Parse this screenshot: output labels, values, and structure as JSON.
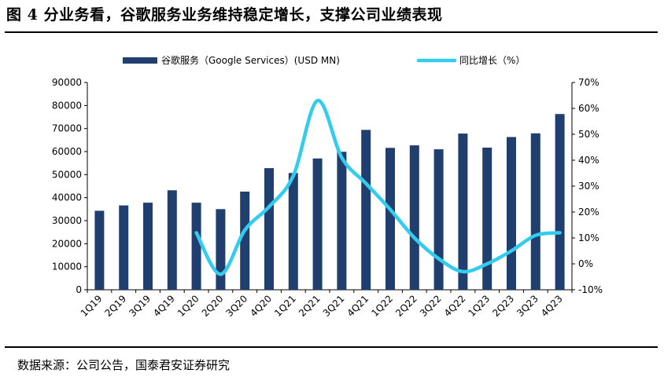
{
  "figure": {
    "title": "图 4 分业务看，谷歌服务业务维持稳定增长，支撑公司业绩表现",
    "source": "数据来源：公司公告，国泰君安证券研究"
  },
  "chart_data": {
    "type": "bar",
    "categories": [
      "1Q19",
      "2Q19",
      "3Q19",
      "4Q19",
      "1Q20",
      "2Q20",
      "3Q20",
      "4Q20",
      "1Q21",
      "2Q21",
      "3Q21",
      "4Q21",
      "1Q22",
      "2Q22",
      "3Q22",
      "4Q22",
      "1Q23",
      "2Q23",
      "3Q23",
      "4Q23"
    ],
    "series": [
      {
        "name": "谷歌服务（Google Services）(USD MN)",
        "type": "bar",
        "axis": "left",
        "color": "#203f6e",
        "values": [
          34300,
          36600,
          37800,
          43200,
          37800,
          35000,
          42600,
          52800,
          50700,
          57000,
          59900,
          69400,
          61600,
          62700,
          61000,
          67800,
          61700,
          66300,
          67900,
          76300
        ]
      },
      {
        "name": "同比增长（%）",
        "type": "line",
        "axis": "right",
        "color": "#33ccee",
        "values": [
          null,
          null,
          null,
          null,
          12,
          -4,
          13,
          22,
          34,
          63,
          41,
          31,
          21,
          10,
          2,
          -3,
          0,
          5,
          11,
          12
        ]
      }
    ],
    "y_left": {
      "lim": [
        0,
        90000
      ],
      "ticks": [
        "0",
        "10000",
        "20000",
        "30000",
        "40000",
        "50000",
        "60000",
        "70000",
        "80000",
        "90000"
      ]
    },
    "y_right": {
      "lim": [
        -10,
        70
      ],
      "ticks": [
        "-10%",
        "0%",
        "10%",
        "20%",
        "30%",
        "40%",
        "50%",
        "60%",
        "70%"
      ]
    },
    "legend": {
      "position": "top"
    },
    "grid": false
  }
}
